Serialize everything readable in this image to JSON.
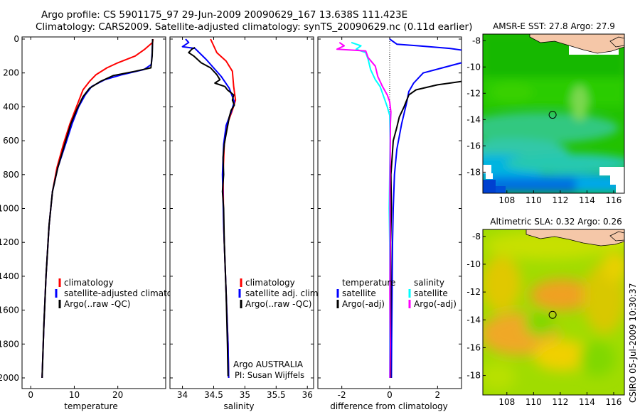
{
  "header": {
    "line1": "Argo profile: CS 5901175_97 29-Jun-2009 20090629_167 13.638S 111.423E",
    "line2": "Climatology: CARS2009. Satellite-adjusted climatology: synTS_20090629.nc (0.11d earlier)"
  },
  "side_label": "CSIRO 05-Jul-2009 10:30:37",
  "colors": {
    "climatology": "#ff0000",
    "satellite": "#0000ff",
    "argo": "#000000",
    "argo_adj_salt": "#ff00ff",
    "satellite_salt": "#00ffff"
  },
  "chart_data": [
    {
      "id": "temperature",
      "type": "line",
      "xlabel": "temperature",
      "ylabel": "",
      "xlim": [
        -2,
        31
      ],
      "ylim": [
        2080,
        0
      ],
      "xticks": [
        "0",
        "10",
        "20"
      ],
      "xtick_values": [
        0,
        10,
        20
      ],
      "yticks": [
        "0",
        "200",
        "400",
        "600",
        "800",
        "1000",
        "1200",
        "1400",
        "1600",
        "1800",
        "2000"
      ],
      "ytick_values": [
        0,
        200,
        400,
        600,
        800,
        1000,
        1200,
        1400,
        1600,
        1800,
        2000
      ],
      "legend": [
        "climatology",
        "satellite-adjusted climatology",
        "Argo(..raw -QC)"
      ],
      "series": [
        {
          "name": "climatology",
          "color": "#ff0000",
          "points": [
            [
              28.1,
              0
            ],
            [
              28.0,
              20
            ],
            [
              26.2,
              60
            ],
            [
              24,
              100
            ],
            [
              20,
              140
            ],
            [
              17.5,
              170
            ],
            [
              15,
              210
            ],
            [
              13.5,
              250
            ],
            [
              12,
              300
            ],
            [
              10.5,
              400
            ],
            [
              9,
              500
            ],
            [
              7.5,
              620
            ],
            [
              6,
              760
            ],
            [
              5,
              900
            ],
            [
              4.2,
              1100
            ],
            [
              3.5,
              1400
            ],
            [
              3.0,
              1700
            ],
            [
              2.6,
              2000
            ]
          ]
        },
        {
          "name": "satellite-adjusted climatology",
          "color": "#0000ff",
          "points": [
            [
              28.0,
              0
            ],
            [
              27.9,
              80
            ],
            [
              27.7,
              150
            ],
            [
              26,
              180
            ],
            [
              21,
              210
            ],
            [
              17,
              240
            ],
            [
              14,
              280
            ],
            [
              12.5,
              330
            ],
            [
              11,
              400
            ],
            [
              9.5,
              500
            ],
            [
              8,
              620
            ],
            [
              6.2,
              760
            ],
            [
              5,
              900
            ],
            [
              4.2,
              1100
            ],
            [
              3.5,
              1400
            ],
            [
              3.0,
              1700
            ],
            [
              2.6,
              2000
            ]
          ]
        },
        {
          "name": "Argo(..raw -QC)",
          "color": "#000000",
          "points": [
            [
              28.0,
              0
            ],
            [
              27.9,
              100
            ],
            [
              27.6,
              170
            ],
            [
              24,
              190
            ],
            [
              19,
              215
            ],
            [
              16,
              250
            ],
            [
              13.5,
              290
            ],
            [
              12,
              340
            ],
            [
              10.5,
              420
            ],
            [
              9.2,
              500
            ],
            [
              7.8,
              620
            ],
            [
              6.2,
              760
            ],
            [
              5,
              900
            ],
            [
              4.2,
              1100
            ],
            [
              3.5,
              1400
            ],
            [
              3.0,
              1700
            ],
            [
              2.6,
              2000
            ]
          ]
        }
      ]
    },
    {
      "id": "salinity",
      "type": "line",
      "xlabel": "salinity",
      "ylabel": "",
      "xlim": [
        33.8,
        36.1
      ],
      "ylim": [
        2080,
        0
      ],
      "xticks": [
        "34",
        "34.5",
        "35",
        "35.5",
        "36"
      ],
      "xtick_values": [
        34,
        34.5,
        35,
        35.5,
        36
      ],
      "legend": [
        "climatology",
        "satellite adj. clim.",
        "Argo(..raw -QC)"
      ],
      "annotations": [
        "Argo AUSTRALIA",
        "PI: Susan Wijffels"
      ],
      "series": [
        {
          "name": "climatology",
          "color": "#ff0000",
          "points": [
            [
              34.45,
              0
            ],
            [
              34.5,
              40
            ],
            [
              34.55,
              80
            ],
            [
              34.7,
              130
            ],
            [
              34.8,
              190
            ],
            [
              34.82,
              280
            ],
            [
              34.85,
              360
            ],
            [
              34.8,
              420
            ],
            [
              34.72,
              500
            ],
            [
              34.67,
              620
            ],
            [
              34.65,
              800
            ],
            [
              34.66,
              1100
            ],
            [
              34.7,
              1500
            ],
            [
              34.73,
              1800
            ],
            [
              34.74,
              2000
            ]
          ]
        },
        {
          "name": "satellite adj. clim.",
          "color": "#0000ff",
          "points": [
            [
              34.05,
              0
            ],
            [
              34.1,
              20
            ],
            [
              34.0,
              45
            ],
            [
              34.2,
              55
            ],
            [
              34.38,
              120
            ],
            [
              34.62,
              220
            ],
            [
              34.75,
              290
            ],
            [
              34.83,
              370
            ],
            [
              34.78,
              430
            ],
            [
              34.7,
              510
            ],
            [
              34.66,
              620
            ],
            [
              34.64,
              800
            ],
            [
              34.66,
              1100
            ],
            [
              34.7,
              1500
            ],
            [
              34.73,
              1800
            ],
            [
              34.74,
              2000
            ]
          ]
        },
        {
          "name": "Argo(..raw -QC)",
          "color": "#000000",
          "points": [
            [
              34.2,
              50
            ],
            [
              34.15,
              60
            ],
            [
              34.1,
              80
            ],
            [
              34.18,
              100
            ],
            [
              34.3,
              140
            ],
            [
              34.45,
              170
            ],
            [
              34.55,
              210
            ],
            [
              34.6,
              240
            ],
            [
              34.52,
              260
            ],
            [
              34.68,
              280
            ],
            [
              34.72,
              300
            ],
            [
              34.82,
              330
            ],
            [
              34.8,
              360
            ],
            [
              34.83,
              390
            ],
            [
              34.78,
              420
            ],
            [
              34.75,
              460
            ],
            [
              34.73,
              500
            ],
            [
              34.7,
              560
            ],
            [
              34.67,
              620
            ],
            [
              34.65,
              700
            ],
            [
              34.66,
              800
            ],
            [
              34.64,
              900
            ],
            [
              34.66,
              1000
            ],
            [
              34.67,
              1200
            ],
            [
              34.7,
              1500
            ],
            [
              34.72,
              1800
            ],
            [
              34.73,
              1990
            ]
          ]
        }
      ]
    },
    {
      "id": "difference",
      "type": "line",
      "xlabel": "difference from climatology",
      "ylabel": "",
      "xlim": [
        -3,
        3
      ],
      "ylim": [
        2080,
        0
      ],
      "xticks": [
        "-2",
        "0",
        "2"
      ],
      "xtick_values": [
        -2,
        0,
        2
      ],
      "legend": [
        "temperature",
        "satellite",
        "Argo(-adj)",
        "salinity",
        "satellite",
        "Argo(-adj)"
      ],
      "series": [
        {
          "name": "temperature satellite",
          "color": "#0000ff",
          "points": [
            [
              0,
              0
            ],
            [
              0.3,
              30
            ],
            [
              1.2,
              40
            ],
            [
              2.5,
              55
            ],
            [
              3,
              65
            ]
          ]
        },
        {
          "name": "temperature satellite deep",
          "color": "#0000ff",
          "points": [
            [
              3,
              140
            ],
            [
              2.2,
              170
            ],
            [
              1.4,
              200
            ],
            [
              1.0,
              260
            ],
            [
              0.8,
              310
            ],
            [
              0.7,
              380
            ],
            [
              0.5,
              500
            ],
            [
              0.3,
              650
            ],
            [
              0.2,
              800
            ],
            [
              0.15,
              1000
            ],
            [
              0.12,
              1200
            ],
            [
              0.1,
              1500
            ],
            [
              0.08,
              1800
            ],
            [
              0.07,
              2000
            ]
          ]
        },
        {
          "name": "temperature Argo(-adj)",
          "color": "#000000",
          "points": [
            [
              3,
              250
            ],
            [
              2,
              270
            ],
            [
              1.1,
              300
            ],
            [
              0.8,
              330
            ],
            [
              0.6,
              400
            ],
            [
              0.4,
              460
            ],
            [
              0.3,
              520
            ],
            [
              0.15,
              600
            ],
            [
              0.1,
              700
            ],
            [
              0.05,
              800
            ],
            [
              0.07,
              1000
            ],
            [
              0.04,
              1200
            ],
            [
              0.05,
              1500
            ],
            [
              0.03,
              1800
            ],
            [
              0.04,
              2000
            ]
          ]
        },
        {
          "name": "salinity satellite",
          "color": "#00ffff",
          "points": [
            [
              -1.6,
              20
            ],
            [
              -1.2,
              40
            ],
            [
              -1.4,
              60
            ],
            [
              -1.0,
              80
            ],
            [
              -0.9,
              120
            ],
            [
              -0.8,
              180
            ],
            [
              -0.6,
              240
            ],
            [
              -0.4,
              280
            ],
            [
              -0.3,
              320
            ],
            [
              -0.2,
              360
            ],
            [
              -0.1,
              400
            ],
            [
              0,
              450
            ],
            [
              0.02,
              600
            ],
            [
              0,
              800
            ],
            [
              -0.02,
              1000
            ],
            [
              0,
              1200
            ],
            [
              0.01,
              1500
            ],
            [
              0,
              1800
            ],
            [
              0,
              2000
            ]
          ]
        },
        {
          "name": "salinity Argo(-adj)",
          "color": "#ff00ff",
          "points": [
            [
              -2.1,
              20
            ],
            [
              -1.9,
              40
            ],
            [
              -2.2,
              60
            ],
            [
              -1.0,
              70
            ],
            [
              -0.9,
              110
            ],
            [
              -0.6,
              160
            ],
            [
              -0.5,
              220
            ],
            [
              -0.3,
              280
            ],
            [
              -0.1,
              330
            ],
            [
              0,
              370
            ],
            [
              0.05,
              430
            ],
            [
              0.03,
              500
            ],
            [
              0.02,
              700
            ],
            [
              0.01,
              900
            ],
            [
              0.02,
              1200
            ],
            [
              0.01,
              1500
            ],
            [
              0.02,
              1800
            ],
            [
              0.01,
              2000
            ]
          ]
        }
      ]
    },
    {
      "id": "amsr_sst",
      "type": "heatmap",
      "title": "AMSR-E SST: 27.8 Argo: 27.9",
      "xlim": [
        106.2,
        116.8
      ],
      "ylim": [
        -19.6,
        -7.5
      ],
      "xticks": [
        "108",
        "110",
        "112",
        "114",
        "116"
      ],
      "xtick_values": [
        108,
        110,
        112,
        114,
        116
      ],
      "yticks": [
        "-8",
        "-10",
        "-12",
        "-14",
        "-16",
        "-18"
      ],
      "ytick_values": [
        -8,
        -10,
        -12,
        -14,
        -16,
        -18
      ],
      "marker": [
        111.423,
        -13.638
      ]
    },
    {
      "id": "altimetric_sla",
      "type": "heatmap",
      "title": "Altimetric SLA: 0.32 Argo: 0.26",
      "xlim": [
        106.2,
        116.8
      ],
      "ylim": [
        -19.4,
        -7.5
      ],
      "xticks": [
        "108",
        "110",
        "112",
        "114",
        "116"
      ],
      "xtick_values": [
        108,
        110,
        112,
        114,
        116
      ],
      "yticks": [
        "-8",
        "-10",
        "-12",
        "-14",
        "-16",
        "-18"
      ],
      "ytick_values": [
        -8,
        -10,
        -12,
        -14,
        -16,
        -18
      ],
      "marker": [
        111.423,
        -13.638
      ]
    }
  ]
}
